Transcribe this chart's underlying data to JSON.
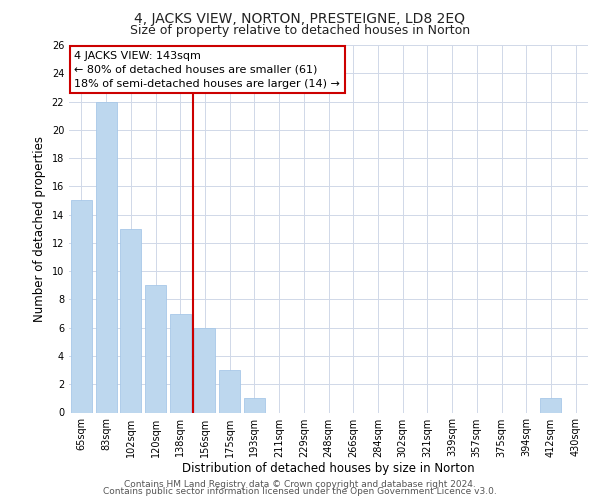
{
  "title": "4, JACKS VIEW, NORTON, PRESTEIGNE, LD8 2EQ",
  "subtitle": "Size of property relative to detached houses in Norton",
  "xlabel": "Distribution of detached houses by size in Norton",
  "ylabel": "Number of detached properties",
  "bar_labels": [
    "65sqm",
    "83sqm",
    "102sqm",
    "120sqm",
    "138sqm",
    "156sqm",
    "175sqm",
    "193sqm",
    "211sqm",
    "229sqm",
    "248sqm",
    "266sqm",
    "284sqm",
    "302sqm",
    "321sqm",
    "339sqm",
    "357sqm",
    "375sqm",
    "394sqm",
    "412sqm",
    "430sqm"
  ],
  "bar_values": [
    15,
    22,
    13,
    9,
    7,
    6,
    3,
    1,
    0,
    0,
    0,
    0,
    0,
    0,
    0,
    0,
    0,
    0,
    0,
    1,
    0
  ],
  "bar_color": "#bdd7ee",
  "bar_edge_color": "#a8c8e8",
  "vline_x": 4.5,
  "vline_color": "#cc0000",
  "ylim": [
    0,
    26
  ],
  "yticks": [
    0,
    2,
    4,
    6,
    8,
    10,
    12,
    14,
    16,
    18,
    20,
    22,
    24,
    26
  ],
  "annotation_title": "4 JACKS VIEW: 143sqm",
  "annotation_line1": "← 80% of detached houses are smaller (61)",
  "annotation_line2": "18% of semi-detached houses are larger (14) →",
  "annotation_box_color": "#ffffff",
  "annotation_box_edge": "#cc0000",
  "footer_line1": "Contains HM Land Registry data © Crown copyright and database right 2024.",
  "footer_line2": "Contains public sector information licensed under the Open Government Licence v3.0.",
  "background_color": "#ffffff",
  "grid_color": "#d0d8e8",
  "title_fontsize": 10,
  "subtitle_fontsize": 9,
  "axis_label_fontsize": 8.5,
  "tick_fontsize": 7,
  "footer_fontsize": 6.5,
  "annotation_fontsize": 8
}
